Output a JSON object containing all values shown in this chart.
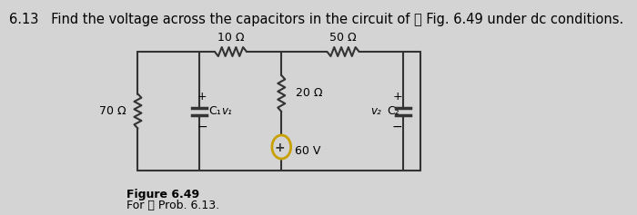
{
  "title": "6.13   Find the voltage across the capacitors in the circuit of Ⓟ Fig. 6.49 under dc conditions.",
  "title_fontsize": 10.5,
  "bg_color": "#d4d4d4",
  "figure_label": "Figure 6.49",
  "for_label": "For Ⓟ Prob. 6.13.",
  "r_left": "70 Ω",
  "r_top_left": "10 Ω",
  "r_top_right": "50 Ω",
  "r_mid": "20 Ω",
  "v_source": "60 V",
  "c1_label": "C₁",
  "c1_voltage": "v₁",
  "c2_label": "C₂",
  "c2_voltage": "v₂",
  "wire_color": "#333333",
  "line_width": 1.5
}
